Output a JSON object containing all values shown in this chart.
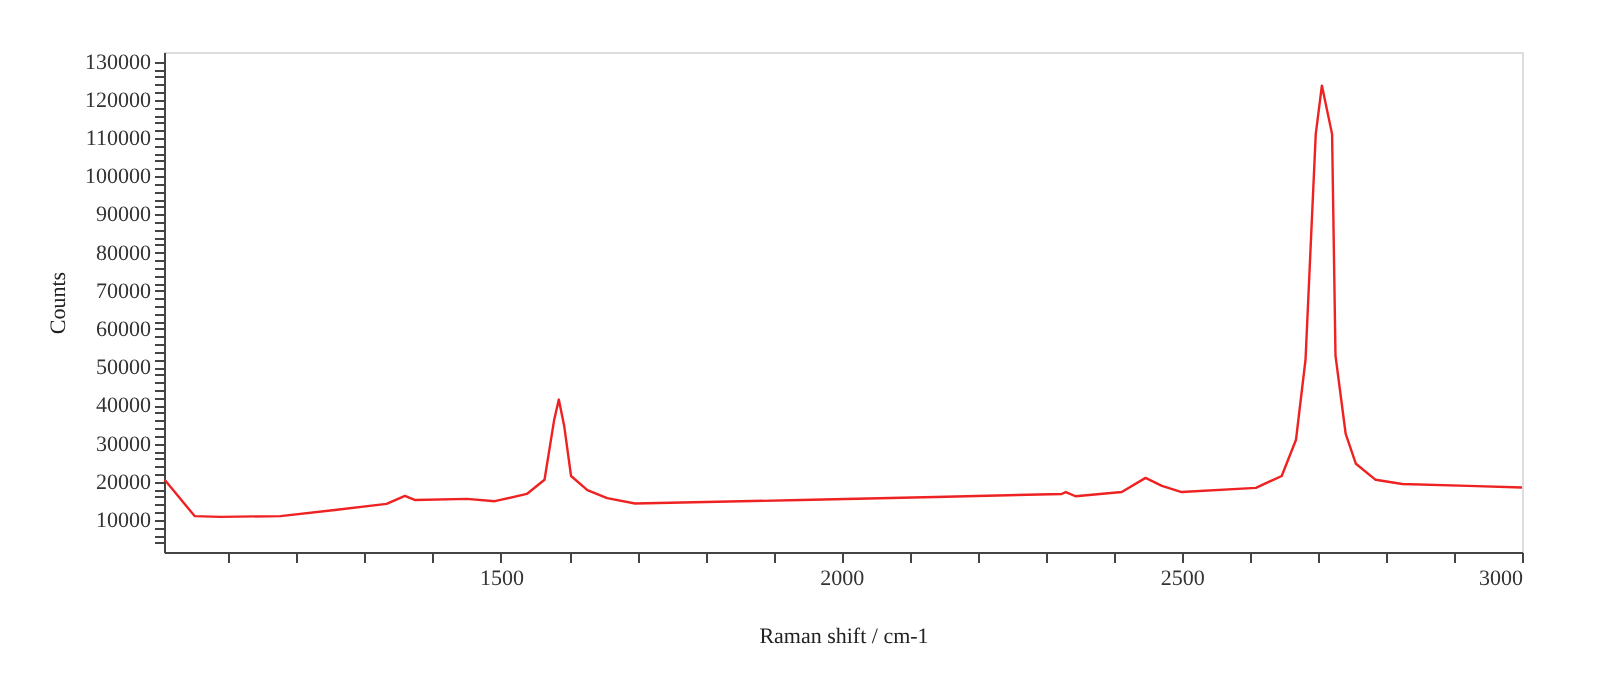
{
  "chart_data": {
    "type": "line",
    "xlabel": "Raman shift / cm-1",
    "ylabel": "Counts",
    "x": [
      1006,
      1050,
      1088,
      1176,
      1256,
      1332,
      1359,
      1374,
      1450,
      1491,
      1538,
      1564,
      1578,
      1585,
      1593,
      1603,
      1627,
      1656,
      1697,
      1941,
      2138,
      2324,
      2330,
      2344,
      2412,
      2447,
      2471,
      2500,
      2609,
      2647,
      2668,
      2682,
      2697,
      2706,
      2721,
      2726,
      2741,
      2756,
      2785,
      2824,
      2921,
      3000
    ],
    "series": [
      {
        "color": "#ee2222",
        "values": [
          20500,
          11000,
          10800,
          11000,
          12600,
          14200,
          16300,
          15200,
          15500,
          14900,
          16800,
          20500,
          36000,
          41500,
          34500,
          21500,
          17800,
          15700,
          14300,
          15200,
          16000,
          16800,
          17300,
          16200,
          17300,
          21000,
          18900,
          17300,
          18400,
          21500,
          31000,
          52000,
          111000,
          123700,
          111000,
          53000,
          32500,
          24700,
          20500,
          19400,
          18900,
          18500
        ]
      }
    ],
    "xlim": [
      1005,
      3000
    ],
    "ylim": [
      1600,
      132500
    ],
    "xticks": [
      {
        "value": 1100,
        "label": null
      },
      {
        "value": 1200,
        "label": null
      },
      {
        "value": 1300,
        "label": null
      },
      {
        "value": 1400,
        "label": null
      },
      1500,
      {
        "value": 1600,
        "label": null
      },
      {
        "value": 1700,
        "label": null
      },
      {
        "value": 1800,
        "label": null
      },
      {
        "value": 1900,
        "label": null
      },
      2000,
      {
        "value": 2100,
        "label": null
      },
      {
        "value": 2200,
        "label": null
      },
      {
        "value": 2300,
        "label": null
      },
      {
        "value": 2400,
        "label": null
      },
      2500,
      {
        "value": 2600,
        "label": null
      },
      {
        "value": 2700,
        "label": null
      },
      {
        "value": 2800,
        "label": null
      },
      {
        "value": 2900,
        "label": null
      },
      3000
    ],
    "yticks": [
      {
        "value": 4000,
        "label": null
      },
      {
        "value": 6000,
        "label": null
      },
      {
        "value": 8000,
        "label": null
      },
      10000,
      {
        "value": 12000,
        "label": null
      },
      {
        "value": 14000,
        "label": null
      },
      {
        "value": 16000,
        "label": null
      },
      {
        "value": 18000,
        "label": null
      },
      20000,
      {
        "value": 22000,
        "label": null
      },
      {
        "value": 24000,
        "label": null
      },
      {
        "value": 26000,
        "label": null
      },
      {
        "value": 28000,
        "label": null
      },
      30000,
      {
        "value": 32000,
        "label": null
      },
      {
        "value": 34000,
        "label": null
      },
      {
        "value": 36000,
        "label": null
      },
      {
        "value": 38000,
        "label": null
      },
      40000,
      {
        "value": 42000,
        "label": null
      },
      {
        "value": 44000,
        "label": null
      },
      {
        "value": 46000,
        "label": null
      },
      {
        "value": 48000,
        "label": null
      },
      50000,
      {
        "value": 52000,
        "label": null
      },
      {
        "value": 54000,
        "label": null
      },
      {
        "value": 56000,
        "label": null
      },
      {
        "value": 58000,
        "label": null
      },
      60000,
      {
        "value": 62000,
        "label": null
      },
      {
        "value": 64000,
        "label": null
      },
      {
        "value": 66000,
        "label": null
      },
      {
        "value": 68000,
        "label": null
      },
      70000,
      {
        "value": 72000,
        "label": null
      },
      {
        "value": 74000,
        "label": null
      },
      {
        "value": 76000,
        "label": null
      },
      {
        "value": 78000,
        "label": null
      },
      80000,
      {
        "value": 82000,
        "label": null
      },
      {
        "value": 84000,
        "label": null
      },
      {
        "value": 86000,
        "label": null
      },
      {
        "value": 88000,
        "label": null
      },
      90000,
      {
        "value": 92000,
        "label": null
      },
      {
        "value": 94000,
        "label": null
      },
      {
        "value": 96000,
        "label": null
      },
      {
        "value": 98000,
        "label": null
      },
      100000,
      {
        "value": 102000,
        "label": null
      },
      {
        "value": 104000,
        "label": null
      },
      {
        "value": 106000,
        "label": null
      },
      {
        "value": 108000,
        "label": null
      },
      110000,
      {
        "value": 112000,
        "label": null
      },
      {
        "value": 114000,
        "label": null
      },
      {
        "value": 116000,
        "label": null
      },
      {
        "value": 118000,
        "label": null
      },
      120000,
      {
        "value": 122000,
        "label": null
      },
      {
        "value": 124000,
        "label": null
      },
      {
        "value": 126000,
        "label": null
      },
      {
        "value": 128000,
        "label": null
      },
      130000
    ],
    "grid": false,
    "marker": "none",
    "line_style": "solid"
  }
}
